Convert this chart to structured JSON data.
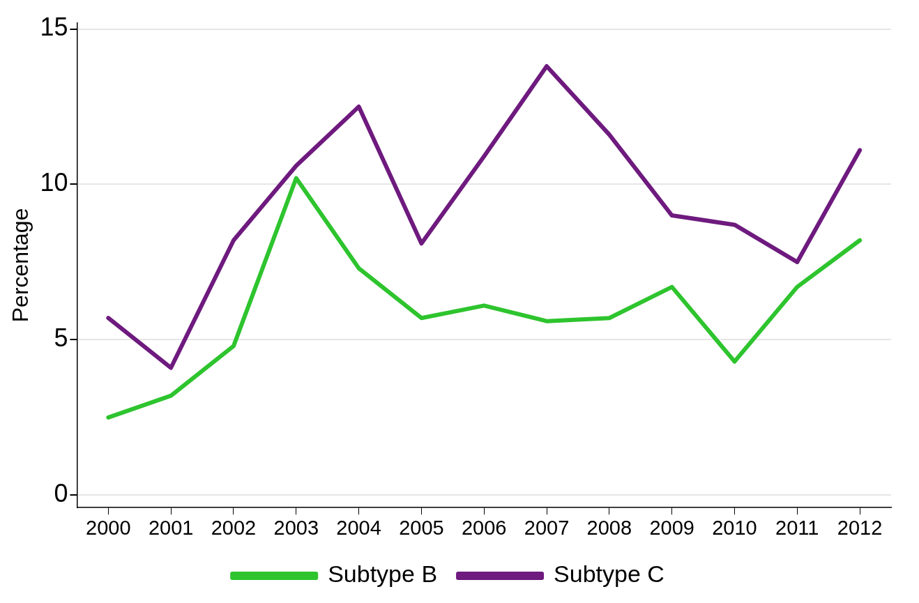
{
  "chart_data": {
    "type": "line",
    "ylabel": "Percentage",
    "categories": [
      "2000",
      "2001",
      "2002",
      "2003",
      "2004",
      "2005",
      "2006",
      "2007",
      "2008",
      "2009",
      "2010",
      "2011",
      "2012"
    ],
    "series": [
      {
        "name": "Subtype B",
        "color": "#2ec42e",
        "values": [
          2.5,
          3.2,
          4.8,
          10.2,
          7.3,
          5.7,
          6.1,
          5.6,
          5.7,
          6.7,
          4.3,
          6.7,
          8.2
        ]
      },
      {
        "name": "Subtype C",
        "color": "#6e1a7e",
        "values": [
          5.7,
          4.1,
          8.2,
          10.6,
          12.5,
          8.1,
          10.9,
          13.8,
          11.6,
          9.0,
          8.7,
          7.5,
          11.1
        ]
      }
    ],
    "ylim": [
      -0.4,
      15.2
    ],
    "yticks": [
      0,
      5,
      10,
      15
    ],
    "grid": "y",
    "legend": "bottom",
    "marker": "none",
    "line_style": "solid"
  }
}
